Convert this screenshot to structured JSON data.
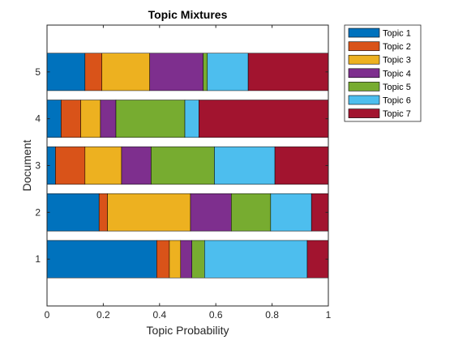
{
  "chart_data": {
    "type": "bar",
    "orientation": "horizontal",
    "stacked": true,
    "title": "Topic Mixtures",
    "xlabel": "Topic Probability",
    "ylabel": "Document",
    "xlim": [
      0,
      1
    ],
    "ylim": [
      0,
      6
    ],
    "xticks": [
      0,
      0.2,
      0.4,
      0.6,
      0.8,
      1
    ],
    "xtick_labels": [
      "0",
      "0.2",
      "0.4",
      "0.6",
      "0.8",
      "1"
    ],
    "categories": [
      "1",
      "2",
      "3",
      "4",
      "5"
    ],
    "legend_position": "outside-top-right",
    "grid": false,
    "series": [
      {
        "name": "Topic 1",
        "color": "#0072BD",
        "values": [
          0.39,
          0.185,
          0.03,
          0.05,
          0.135
        ]
      },
      {
        "name": "Topic 2",
        "color": "#D95319",
        "values": [
          0.045,
          0.03,
          0.105,
          0.07,
          0.06
        ]
      },
      {
        "name": "Topic 3",
        "color": "#EDB120",
        "values": [
          0.04,
          0.295,
          0.13,
          0.07,
          0.17
        ]
      },
      {
        "name": "Topic 4",
        "color": "#7E2F8E",
        "values": [
          0.04,
          0.145,
          0.105,
          0.055,
          0.19
        ]
      },
      {
        "name": "Topic 5",
        "color": "#77AC30",
        "values": [
          0.045,
          0.14,
          0.225,
          0.245,
          0.015
        ]
      },
      {
        "name": "Topic 6",
        "color": "#4DBEEE",
        "values": [
          0.365,
          0.145,
          0.215,
          0.05,
          0.145
        ]
      },
      {
        "name": "Topic 7",
        "color": "#A2142F",
        "values": [
          0.075,
          0.06,
          0.19,
          0.46,
          0.285
        ]
      }
    ]
  }
}
